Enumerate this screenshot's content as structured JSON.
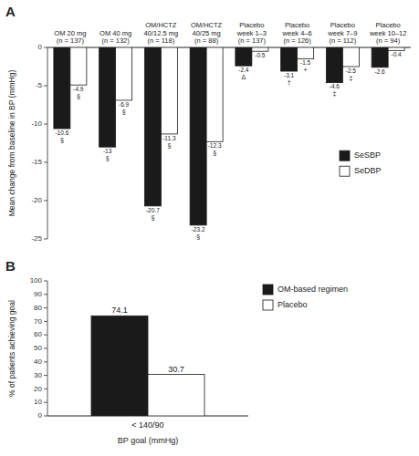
{
  "chart_data": [
    {
      "type": "bar",
      "title": "A",
      "categories": [
        "OM 20 mg\n(n = 137)",
        "OM 40 mg\n(n = 132)",
        "OM/HCTZ\n40/12.5 mg\n(n = 118)",
        "OM/HCTZ\n40/25 mg\n(n = 88)",
        "Placebo\nweek 1–3\n(n = 137)",
        "Placebo\nweek 4–6\n(n = 126)",
        "Placebo\nweek 7–9\n(n = 112)",
        "Placebo\nweek 10–12\n(n = 94)"
      ],
      "series": [
        {
          "name": "SeSBP",
          "color": "#1a1a1a",
          "values": [
            -10.6,
            -13.0,
            -20.7,
            -23.2,
            -2.4,
            -3.1,
            -4.6,
            -2.6
          ],
          "annotations": [
            "§",
            "§",
            "§",
            "§",
            "Δ",
            "†",
            "‡",
            null
          ]
        },
        {
          "name": "SeDBP",
          "color": "#ffffff",
          "values": [
            -4.9,
            -6.9,
            -11.3,
            -12.3,
            -0.5,
            -1.5,
            -2.5,
            -0.4
          ],
          "annotations": [
            "§",
            "§",
            "§",
            "§",
            null,
            "+",
            "‡",
            null
          ]
        }
      ],
      "ylabel": "Mean change from baseline in BP (mmHg)",
      "ylim": [
        -25,
        0
      ],
      "yticks": [
        0,
        -5,
        -10,
        -15,
        -20,
        -25
      ],
      "data_labels": true,
      "legend": "right"
    },
    {
      "type": "bar",
      "title": "B",
      "categories": [
        "< 140/90"
      ],
      "series": [
        {
          "name": "OM-based regimen",
          "color": "#1a1a1a",
          "values": [
            74.1
          ]
        },
        {
          "name": "Placebo",
          "color": "#ffffff",
          "values": [
            30.7
          ]
        }
      ],
      "xlabel": "BP goal (mmHg)",
      "ylabel": "% of patients achieving goal",
      "ylim": [
        0,
        100
      ],
      "yticks": [
        0,
        10,
        20,
        30,
        40,
        50,
        60,
        70,
        80,
        90,
        100
      ],
      "data_labels": true,
      "legend": "right"
    }
  ]
}
